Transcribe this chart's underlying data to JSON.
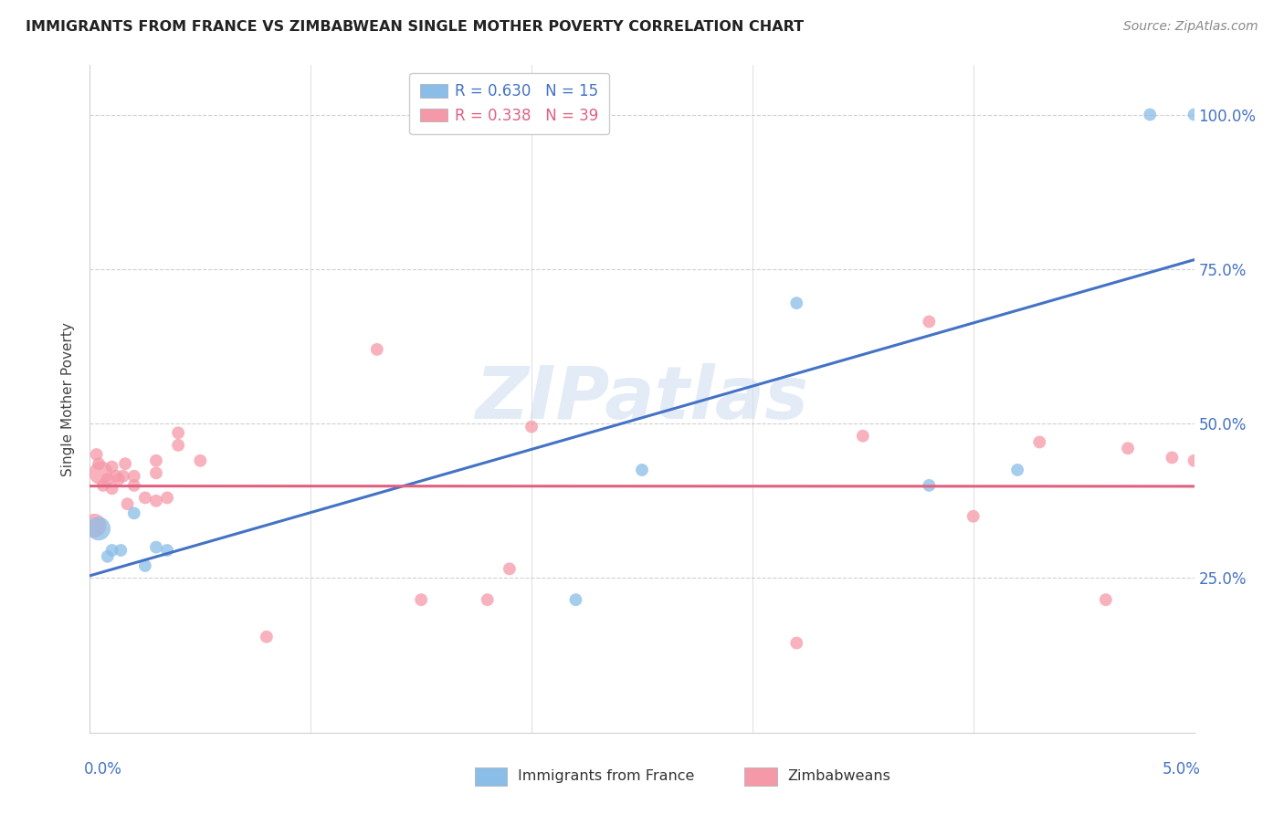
{
  "title": "IMMIGRANTS FROM FRANCE VS ZIMBABWEAN SINGLE MOTHER POVERTY CORRELATION CHART",
  "source": "Source: ZipAtlas.com",
  "ylabel": "Single Mother Poverty",
  "legend_label1": "Immigrants from France",
  "legend_label2": "Zimbabweans",
  "watermark": "ZIPatlas",
  "ytick_labels": [
    "25.0%",
    "50.0%",
    "75.0%",
    "100.0%"
  ],
  "ytick_vals": [
    0.25,
    0.5,
    0.75,
    1.0
  ],
  "xtick_vals": [
    0.0,
    0.01,
    0.02,
    0.03,
    0.04,
    0.05
  ],
  "xlim": [
    0.0,
    0.05
  ],
  "ylim": [
    0.0,
    1.08
  ],
  "blue_color": "#8abde8",
  "pink_color": "#f599a8",
  "blue_line_color": "#4472c4",
  "pink_line_color": "#e06080",
  "blue_text_color": "#4472c4",
  "pink_text_color": "#e06080",
  "grid_color": "#d0d0d0",
  "france_x": [
    0.0004,
    0.0008,
    0.001,
    0.0014,
    0.002,
    0.0025,
    0.003,
    0.0035,
    0.022,
    0.025,
    0.032,
    0.038,
    0.042,
    0.048,
    0.05
  ],
  "france_y": [
    0.33,
    0.285,
    0.295,
    0.295,
    0.355,
    0.27,
    0.3,
    0.295,
    0.215,
    0.425,
    0.695,
    0.4,
    0.425,
    1.0,
    1.0
  ],
  "france_sizes": [
    350,
    100,
    100,
    100,
    100,
    100,
    100,
    100,
    100,
    100,
    100,
    100,
    100,
    100,
    100
  ],
  "zimb_x": [
    0.0002,
    0.0003,
    0.0004,
    0.0005,
    0.0006,
    0.0008,
    0.001,
    0.001,
    0.0012,
    0.0013,
    0.0015,
    0.0016,
    0.0017,
    0.002,
    0.002,
    0.0025,
    0.003,
    0.003,
    0.003,
    0.0035,
    0.004,
    0.004,
    0.005,
    0.008,
    0.013,
    0.015,
    0.018,
    0.019,
    0.02,
    0.032,
    0.035,
    0.038,
    0.04,
    0.043,
    0.046,
    0.047,
    0.049,
    0.05
  ],
  "zimb_y": [
    0.335,
    0.45,
    0.435,
    0.42,
    0.4,
    0.41,
    0.395,
    0.43,
    0.415,
    0.41,
    0.415,
    0.435,
    0.37,
    0.4,
    0.415,
    0.38,
    0.375,
    0.44,
    0.42,
    0.38,
    0.485,
    0.465,
    0.44,
    0.155,
    0.62,
    0.215,
    0.215,
    0.265,
    0.495,
    0.145,
    0.48,
    0.665,
    0.35,
    0.47,
    0.215,
    0.46,
    0.445,
    0.44
  ],
  "zimb_sizes": [
    350,
    100,
    100,
    350,
    100,
    100,
    100,
    100,
    100,
    100,
    100,
    100,
    100,
    100,
    100,
    100,
    100,
    100,
    100,
    100,
    100,
    100,
    100,
    100,
    100,
    100,
    100,
    100,
    100,
    100,
    100,
    100,
    100,
    100,
    100,
    100,
    100,
    100
  ]
}
